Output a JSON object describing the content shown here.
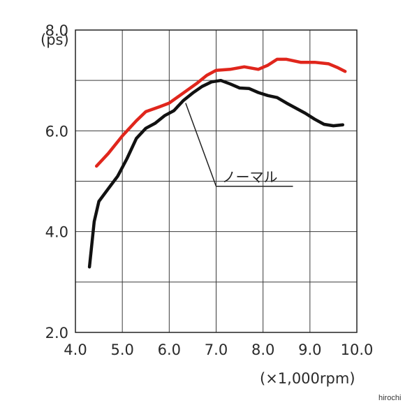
{
  "chart_data": {
    "type": "line",
    "ylabel": "(ps)",
    "xlabel": "(×1,000rpm)",
    "xlim": [
      4.0,
      10.0
    ],
    "ylim": [
      2.0,
      8.0
    ],
    "grid": true,
    "x_ticks": [
      "4.0",
      "5.0",
      "6.0",
      "7.0",
      "8.0",
      "9.0",
      "10.0"
    ],
    "y_ticks": [
      {
        "value": 2.0,
        "label": "2.0"
      },
      {
        "value": 4.0,
        "label": "4.0"
      },
      {
        "value": 6.0,
        "label": "6.0"
      },
      {
        "value": 8.0,
        "label": "8.0"
      }
    ],
    "series": [
      {
        "name": "",
        "color": "#e0261c",
        "points": [
          [
            4.45,
            5.3
          ],
          [
            4.7,
            5.55
          ],
          [
            5.0,
            5.9
          ],
          [
            5.3,
            6.2
          ],
          [
            5.5,
            6.38
          ],
          [
            5.8,
            6.48
          ],
          [
            6.0,
            6.55
          ],
          [
            6.3,
            6.75
          ],
          [
            6.6,
            6.95
          ],
          [
            6.8,
            7.1
          ],
          [
            7.0,
            7.2
          ],
          [
            7.3,
            7.22
          ],
          [
            7.6,
            7.27
          ],
          [
            7.9,
            7.22
          ],
          [
            8.1,
            7.3
          ],
          [
            8.3,
            7.42
          ],
          [
            8.5,
            7.42
          ],
          [
            8.8,
            7.36
          ],
          [
            9.1,
            7.36
          ],
          [
            9.4,
            7.33
          ],
          [
            9.6,
            7.25
          ],
          [
            9.75,
            7.18
          ]
        ]
      },
      {
        "name": "ノーマル",
        "color": "#111111",
        "points": [
          [
            4.3,
            3.3
          ],
          [
            4.4,
            4.2
          ],
          [
            4.5,
            4.6
          ],
          [
            4.7,
            4.85
          ],
          [
            4.9,
            5.1
          ],
          [
            5.1,
            5.45
          ],
          [
            5.3,
            5.85
          ],
          [
            5.5,
            6.05
          ],
          [
            5.7,
            6.15
          ],
          [
            5.9,
            6.3
          ],
          [
            6.1,
            6.4
          ],
          [
            6.3,
            6.6
          ],
          [
            6.5,
            6.75
          ],
          [
            6.7,
            6.88
          ],
          [
            6.9,
            6.97
          ],
          [
            7.1,
            7.0
          ],
          [
            7.3,
            6.93
          ],
          [
            7.5,
            6.85
          ],
          [
            7.7,
            6.84
          ],
          [
            7.9,
            6.76
          ],
          [
            8.1,
            6.7
          ],
          [
            8.3,
            6.66
          ],
          [
            8.5,
            6.55
          ],
          [
            8.7,
            6.45
          ],
          [
            8.9,
            6.35
          ],
          [
            9.1,
            6.23
          ],
          [
            9.3,
            6.13
          ],
          [
            9.5,
            6.1
          ],
          [
            9.7,
            6.12
          ]
        ]
      }
    ],
    "annotation": {
      "text": "ノーマル",
      "target": [
        6.35,
        6.55
      ],
      "label_at": [
        7.0,
        4.9
      ]
    }
  },
  "watermark": "hirochi"
}
